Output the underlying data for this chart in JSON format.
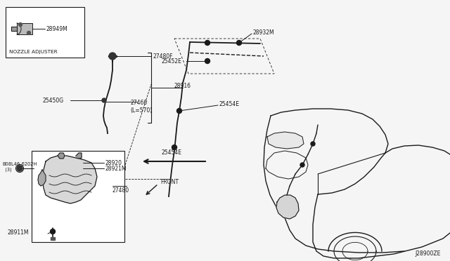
{
  "bg_color": "#f5f5f5",
  "diagram_code": "J28900ZE",
  "parts": {
    "nozzle_adjuster_label": "NOZZLE ADJUSTER",
    "part_28949M": "28949M",
    "part_27480F": "27480F",
    "part_25450G": "25450G",
    "part_27460": "27460\n(L=570)",
    "part_28916": "28916",
    "part_28932M": "28932M",
    "part_25452E": "25452E",
    "part_25454E_1": "25454E",
    "part_25454E_2": "25454E",
    "part_B_bolt": "B08L46-6202H\n  (3)",
    "part_28920": "28920",
    "part_28921M": "28921M",
    "part_27480": "27480",
    "part_28911M": "28911M",
    "front_label": "FRONT"
  },
  "line_color": "#1a1a1a",
  "text_color": "#1a1a1a",
  "box_color": "#ffffff"
}
